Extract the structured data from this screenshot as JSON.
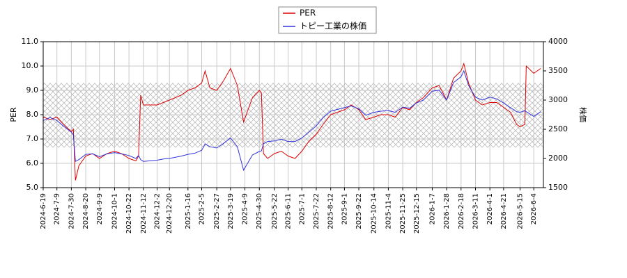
{
  "chart_data": {
    "type": "line",
    "x": [
      "2024-6-19",
      "2024-6-29",
      "2024-7-9",
      "2024-7-19",
      "2024-7-30",
      "2024-8-2",
      "2024-8-5",
      "2024-8-10",
      "2024-8-20",
      "2024-8-30",
      "2024-9-9",
      "2024-9-20",
      "2024-10-1",
      "2024-10-11",
      "2024-10-22",
      "2024-11-1",
      "2024-11-5",
      "2024-11-8",
      "2024-11-12",
      "2024-11-22",
      "2024-12-2",
      "2024-12-11",
      "2024-12-20",
      "2025-1-6",
      "2025-1-16",
      "2025-1-26",
      "2025-2-5",
      "2025-2-10",
      "2025-2-17",
      "2025-2-27",
      "2025-3-9",
      "2025-3-19",
      "2025-3-29",
      "2025-4-7",
      "2025-4-20",
      "2025-4-30",
      "2025-5-3",
      "2025-5-6",
      "2025-5-12",
      "2025-5-22",
      "2025-6-1",
      "2025-6-11",
      "2025-6-21",
      "2025-7-1",
      "2025-7-11",
      "2025-7-22",
      "2025-8-1",
      "2025-8-12",
      "2025-8-22",
      "2025-9-1",
      "2025-9-11",
      "2025-9-22",
      "2025-10-2",
      "2025-10-14",
      "2025-10-24",
      "2025-11-4",
      "2025-11-14",
      "2025-11-25",
      "2025-12-5",
      "2025-12-15",
      "2025-12-25",
      "2026-1-7",
      "2026-1-17",
      "2026-1-28",
      "2026-2-7",
      "2026-2-18",
      "2026-2-22",
      "2026-3-1",
      "2026-3-11",
      "2026-3-21",
      "2026-4-1",
      "2026-4-11",
      "2026-4-21",
      "2026-5-1",
      "2026-5-10",
      "2026-5-15",
      "2026-5-22",
      "2026-5-24",
      "2026-6-4",
      "2026-6-14"
    ],
    "series": [
      {
        "name": "PER",
        "color": "#dd0000",
        "values": [
          7.9,
          7.8,
          7.9,
          7.6,
          7.3,
          7.4,
          5.3,
          5.9,
          6.3,
          6.4,
          6.2,
          6.4,
          6.5,
          6.4,
          6.2,
          6.1,
          6.3,
          8.8,
          8.4,
          8.4,
          8.4,
          8.5,
          8.6,
          8.8,
          9.0,
          9.1,
          9.3,
          9.8,
          9.1,
          9.0,
          9.4,
          9.9,
          9.2,
          7.7,
          8.7,
          9.0,
          8.9,
          6.4,
          6.2,
          6.4,
          6.5,
          6.3,
          6.2,
          6.5,
          6.9,
          7.2,
          7.6,
          8.0,
          8.1,
          8.2,
          8.4,
          8.2,
          7.8,
          7.9,
          8.0,
          8.0,
          7.9,
          8.3,
          8.2,
          8.5,
          8.7,
          9.1,
          9.2,
          8.6,
          9.5,
          9.8,
          10.1,
          9.3,
          8.6,
          8.4,
          8.5,
          8.5,
          8.3,
          8.1,
          7.6,
          7.5,
          7.6,
          10.0,
          9.7,
          9.9
        ]
      },
      {
        "name": "トピー工業の株価",
        "color": "#3333dd",
        "axis": "y2",
        "values": [
          2650,
          2700,
          2650,
          2550,
          2450,
          2400,
          1950,
          1980,
          2070,
          2080,
          2030,
          2080,
          2100,
          2080,
          2050,
          2000,
          2050,
          1980,
          1950,
          1960,
          1970,
          1990,
          2000,
          2040,
          2070,
          2090,
          2140,
          2250,
          2200,
          2180,
          2260,
          2350,
          2200,
          1800,
          2060,
          2120,
          2130,
          2250,
          2290,
          2300,
          2330,
          2290,
          2290,
          2350,
          2450,
          2560,
          2700,
          2810,
          2840,
          2870,
          2900,
          2850,
          2740,
          2790,
          2810,
          2820,
          2790,
          2880,
          2860,
          2950,
          3000,
          3150,
          3170,
          3000,
          3300,
          3400,
          3500,
          3250,
          3050,
          3000,
          3050,
          3020,
          2950,
          2870,
          2800,
          2790,
          2820,
          2800,
          2720,
          2800
        ]
      }
    ],
    "xlim": [
      "2024-6-19",
      "2026-6-18"
    ],
    "xticks": [
      "2024-6-19",
      "2024-7-9",
      "2024-7-30",
      "2024-8-20",
      "2024-9-9",
      "2024-10-1",
      "2024-10-22",
      "2024-11-12",
      "2024-12-2",
      "2024-12-20",
      "2025-1-16",
      "2025-2-5",
      "2025-2-27",
      "2025-3-19",
      "2025-4-9",
      "2025-4-30",
      "2025-5-22",
      "2025-6-11",
      "2025-7-1",
      "2025-7-22",
      "2025-8-12",
      "2025-9-1",
      "2025-9-22",
      "2025-10-14",
      "2025-11-4",
      "2025-11-25",
      "2025-12-15",
      "2026-1-7",
      "2026-1-28",
      "2026-2-18",
      "2026-3-11",
      "2026-4-1",
      "2026-4-21",
      "2026-5-15",
      "2026-6-4"
    ],
    "ylabel": "PER",
    "ylim": [
      5,
      11
    ],
    "yticks": [
      {
        "value": 5,
        "label": "5.0"
      },
      {
        "value": 6,
        "label": "6.0"
      },
      {
        "value": 7,
        "label": "7.0"
      },
      {
        "value": 8,
        "label": "8.0"
      },
      {
        "value": 9,
        "label": "9.0"
      },
      {
        "value": 10,
        "label": "10.0"
      },
      {
        "value": 11,
        "label": "11.0"
      }
    ],
    "y2label": "株価",
    "y2lim": [
      1500,
      4000
    ],
    "y2ticks": [
      1500,
      2000,
      2500,
      3000,
      3500,
      4000
    ],
    "band": [
      6.65,
      9.3
    ],
    "grid": true,
    "legend": "top"
  }
}
